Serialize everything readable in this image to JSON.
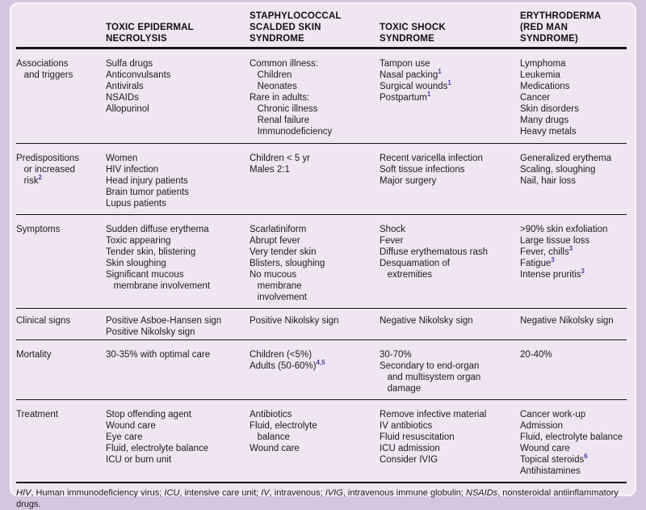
{
  "colors": {
    "page_background": "#d5c6df",
    "card_background": "#f0e6f2",
    "card_border": "#faf6fb",
    "rule": "#141414",
    "text": "#1b1b1d",
    "superscript": "#4c3fa5"
  },
  "table": {
    "columns": [
      {
        "id": "attribute",
        "header_lines": []
      },
      {
        "id": "toxic-epidermal-necrolysis",
        "header_lines": [
          "TOXIC EPIDERMAL",
          "NECROLYSIS"
        ]
      },
      {
        "id": "staphylococcal-scalded-skin-syndrome",
        "header_lines": [
          "STAPHYLOCOCCAL",
          "SCALDED SKIN",
          "SYNDROME"
        ]
      },
      {
        "id": "toxic-shock-syndrome",
        "header_lines": [
          "TOXIC SHOCK",
          "SYNDROME"
        ]
      },
      {
        "id": "erythroderma-red-man-syndrome",
        "header_lines": [
          "ERYTHRODERMA",
          "(RED MAN",
          "SYNDROME)"
        ]
      }
    ],
    "rows": [
      {
        "label": [
          "Associations",
          "   and triggers"
        ],
        "cells": [
          [
            "Sulfa drugs",
            "Anticonvulsants",
            "Antivirals",
            "NSAIDs",
            "Allopurinol"
          ],
          [
            "Common illness:",
            "   Children",
            "   Neonates",
            "Rare in adults:",
            "   Chronic illness",
            "   Renal failure",
            "   Immunodeficiency"
          ],
          [
            "Tampon use",
            "Nasal packing^{1}",
            "Surgical wounds^{1}",
            "Postpartum^{1}"
          ],
          [
            "Lymphoma",
            "Leukemia",
            "Medications",
            "Cancer",
            "Skin disorders",
            "Many drugs",
            "Heavy metals"
          ]
        ]
      },
      {
        "label": [
          "Predispositions",
          "   or increased",
          "   risk^{2}"
        ],
        "cells": [
          [
            "Women",
            "HIV infection",
            "Head injury patients",
            "Brain tumor patients",
            "Lupus patients"
          ],
          [
            "Children < 5 yr",
            "Males 2:1"
          ],
          [
            "Recent varicella infection",
            "Soft tissue infections",
            "Major surgery"
          ],
          [
            "Generalized erythema",
            "Scaling, sloughing",
            "Nail, hair loss"
          ]
        ]
      },
      {
        "label": [
          "Symptoms"
        ],
        "cells": [
          [
            "Sudden diffuse erythema",
            "Toxic appearing",
            "Tender skin, blistering",
            "Skin sloughing",
            "Significant mucous",
            "   membrane involvement"
          ],
          [
            "Scarlatiniform",
            "Abrupt fever",
            "Very tender skin",
            "Blisters, sloughing",
            "No mucous",
            "   membrane",
            "   involvement"
          ],
          [
            "Shock",
            "Fever",
            "Diffuse erythematous rash",
            "Desquamation of",
            "   extremities"
          ],
          [
            ">90% skin exfoliation",
            "Large tissue loss",
            "Fever, chills^{3}",
            "Fatigue^{3}",
            "Intense pruritis^{3}"
          ]
        ]
      },
      {
        "label": [
          "Clinical signs"
        ],
        "cells": [
          [
            "Positive Asboe-Hansen sign",
            "Positive Nikolsky sign"
          ],
          [
            "Positive Nikolsky sign"
          ],
          [
            "Negative Nikolsky sign"
          ],
          [
            "Negative Nikolsky sign"
          ]
        ]
      },
      {
        "label": [
          "Mortality"
        ],
        "cells": [
          [
            "30-35% with optimal care"
          ],
          [
            "Children (<5%)",
            "Adults (50-60%)^{4,5}"
          ],
          [
            "30-70%",
            "Secondary to end-organ",
            "   and multisystem organ",
            "   damage"
          ],
          [
            "20-40%"
          ]
        ]
      },
      {
        "label": [
          "Treatment"
        ],
        "cells": [
          [
            "Stop offending agent",
            "Wound care",
            "Eye care",
            "Fluid, electrolyte balance",
            "ICU or burn unit"
          ],
          [
            "Antibiotics",
            "Fluid, electrolyte",
            "   balance",
            "Wound care"
          ],
          [
            "Remove infective material",
            "IV antibiotics",
            "Fluid resuscitation",
            "ICU admission",
            "Consider IVIG"
          ],
          [
            "Cancer work-up",
            "Admission",
            "Fluid, electrolyte balance",
            "Wound care",
            "Topical steroids^{6}",
            "Antihistamines"
          ]
        ]
      }
    ],
    "footnote": "_HIV_, Human immunodeficiency virus; _ICU_, intensive care unit; _IV_, intravenous; _IVIG_, intravenous immune globulin; _NSAIDs_, nonsteroidal antiinflammatory drugs."
  }
}
